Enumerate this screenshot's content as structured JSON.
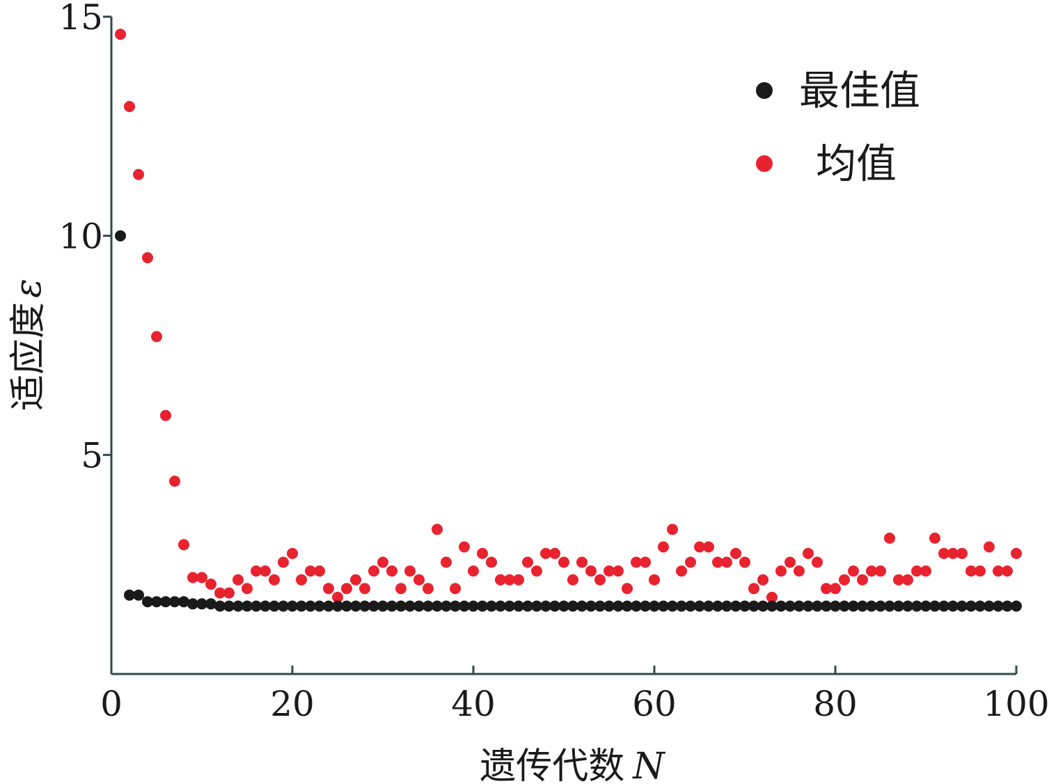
{
  "chart_data": {
    "type": "scatter",
    "xlabel": "遗传代数",
    "xlabel_var": "N",
    "ylabel": "适应度",
    "ylabel_var": "ε",
    "xlim": [
      0,
      100
    ],
    "ylim": [
      0,
      15
    ],
    "xticks": [
      0,
      20,
      40,
      60,
      80,
      100
    ],
    "yticks": [
      5,
      10,
      15
    ],
    "grid": false,
    "legend_position": "top-right",
    "x": [
      1,
      2,
      3,
      4,
      5,
      6,
      7,
      8,
      9,
      10,
      11,
      12,
      13,
      14,
      15,
      16,
      17,
      18,
      19,
      20,
      21,
      22,
      23,
      24,
      25,
      26,
      27,
      28,
      29,
      30,
      31,
      32,
      33,
      34,
      35,
      36,
      37,
      38,
      39,
      40,
      41,
      42,
      43,
      44,
      45,
      46,
      47,
      48,
      49,
      50,
      51,
      52,
      53,
      54,
      55,
      56,
      57,
      58,
      59,
      60,
      61,
      62,
      63,
      64,
      65,
      66,
      67,
      68,
      69,
      70,
      71,
      72,
      73,
      74,
      75,
      76,
      77,
      78,
      79,
      80,
      81,
      82,
      83,
      84,
      85,
      86,
      87,
      88,
      89,
      90,
      91,
      92,
      93,
      94,
      95,
      96,
      97,
      98,
      99,
      100
    ],
    "series": [
      {
        "name": "最佳值",
        "color": "#1a1a1a",
        "values": [
          10.0,
          1.8,
          1.8,
          1.65,
          1.65,
          1.65,
          1.65,
          1.65,
          1.6,
          1.6,
          1.6,
          1.55,
          1.55,
          1.55,
          1.55,
          1.55,
          1.55,
          1.55,
          1.55,
          1.55,
          1.55,
          1.55,
          1.55,
          1.55,
          1.55,
          1.55,
          1.55,
          1.55,
          1.55,
          1.55,
          1.55,
          1.55,
          1.55,
          1.55,
          1.55,
          1.55,
          1.55,
          1.55,
          1.55,
          1.55,
          1.55,
          1.55,
          1.55,
          1.55,
          1.55,
          1.55,
          1.55,
          1.55,
          1.55,
          1.55,
          1.55,
          1.55,
          1.55,
          1.55,
          1.55,
          1.55,
          1.55,
          1.55,
          1.55,
          1.55,
          1.55,
          1.55,
          1.55,
          1.55,
          1.55,
          1.55,
          1.55,
          1.55,
          1.55,
          1.55,
          1.55,
          1.55,
          1.55,
          1.55,
          1.55,
          1.55,
          1.55,
          1.55,
          1.55,
          1.55,
          1.55,
          1.55,
          1.55,
          1.55,
          1.55,
          1.55,
          1.55,
          1.55,
          1.55,
          1.55,
          1.55,
          1.55,
          1.55,
          1.55,
          1.55,
          1.55,
          1.55,
          1.55,
          1.55,
          1.55
        ]
      },
      {
        "name": "均值",
        "color": "#e8232f",
        "values": [
          14.6,
          12.95,
          11.4,
          9.5,
          7.7,
          5.9,
          4.4,
          2.95,
          2.2,
          2.2,
          2.05,
          1.85,
          1.85,
          2.15,
          1.95,
          2.35,
          2.35,
          2.15,
          2.55,
          2.75,
          2.15,
          2.35,
          2.35,
          1.95,
          1.75,
          1.95,
          2.15,
          1.95,
          2.35,
          2.55,
          2.35,
          1.95,
          2.35,
          2.15,
          1.95,
          3.3,
          2.55,
          1.95,
          2.9,
          2.35,
          2.75,
          2.55,
          2.15,
          2.15,
          2.15,
          2.55,
          2.35,
          2.75,
          2.75,
          2.55,
          2.15,
          2.55,
          2.35,
          2.15,
          2.35,
          2.35,
          1.95,
          2.55,
          2.55,
          2.15,
          2.9,
          3.3,
          2.35,
          2.55,
          2.9,
          2.9,
          2.55,
          2.55,
          2.75,
          2.55,
          1.95,
          2.15,
          1.75,
          2.35,
          2.55,
          2.35,
          2.75,
          2.55,
          1.95,
          1.95,
          2.15,
          2.35,
          2.15,
          2.35,
          2.35,
          3.1,
          2.15,
          2.15,
          2.35,
          2.35,
          3.1,
          2.75,
          2.75,
          2.75,
          2.35,
          2.35,
          2.9,
          2.35,
          2.35,
          2.75
        ]
      }
    ]
  }
}
